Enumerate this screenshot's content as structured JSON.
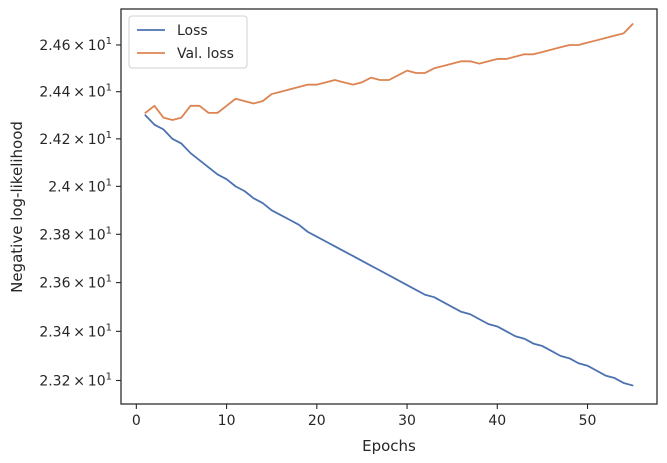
{
  "chart_data": {
    "type": "line",
    "xlabel": "Epochs",
    "ylabel": "Negative log-likelihood",
    "yscale": "log",
    "xlim": [
      -1.7,
      57.7
    ],
    "ylim": [
      23.105,
      24.755
    ],
    "grid": false,
    "legend_position": "top-left",
    "x_ticks": [
      {
        "value": 0,
        "label": "0"
      },
      {
        "value": 10,
        "label": "10"
      },
      {
        "value": 20,
        "label": "20"
      },
      {
        "value": 30,
        "label": "30"
      },
      {
        "value": 40,
        "label": "40"
      },
      {
        "value": 50,
        "label": "50"
      }
    ],
    "y_ticks": [
      {
        "value": 23.2,
        "mantissa": "2.32",
        "times": "×",
        "base": "10",
        "exp": "1"
      },
      {
        "value": 23.4,
        "mantissa": "2.34",
        "times": "×",
        "base": "10",
        "exp": "1"
      },
      {
        "value": 23.6,
        "mantissa": "2.36",
        "times": "×",
        "base": "10",
        "exp": "1"
      },
      {
        "value": 23.8,
        "mantissa": "2.38",
        "times": "×",
        "base": "10",
        "exp": "1"
      },
      {
        "value": 24.0,
        "mantissa": "2.4",
        "times": "×",
        "base": "10",
        "exp": "1"
      },
      {
        "value": 24.2,
        "mantissa": "2.42",
        "times": "×",
        "base": "10",
        "exp": "1"
      },
      {
        "value": 24.4,
        "mantissa": "2.44",
        "times": "×",
        "base": "10",
        "exp": "1"
      },
      {
        "value": 24.6,
        "mantissa": "2.46",
        "times": "×",
        "base": "10",
        "exp": "1"
      }
    ],
    "x": [
      1,
      2,
      3,
      4,
      5,
      6,
      7,
      8,
      9,
      10,
      11,
      12,
      13,
      14,
      15,
      16,
      17,
      18,
      19,
      20,
      21,
      22,
      23,
      24,
      25,
      26,
      27,
      28,
      29,
      30,
      31,
      32,
      33,
      34,
      35,
      36,
      37,
      38,
      39,
      40,
      41,
      42,
      43,
      44,
      45,
      46,
      47,
      48,
      49,
      50,
      51,
      52,
      53,
      54,
      55
    ],
    "series": [
      {
        "name": "Loss",
        "color": "#4c72b0",
        "values": [
          24.3,
          24.26,
          24.24,
          24.2,
          24.18,
          24.14,
          24.11,
          24.08,
          24.05,
          24.03,
          24.0,
          23.98,
          23.95,
          23.93,
          23.9,
          23.88,
          23.86,
          23.84,
          23.81,
          23.79,
          23.77,
          23.75,
          23.73,
          23.71,
          23.69,
          23.67,
          23.65,
          23.63,
          23.61,
          23.59,
          23.57,
          23.55,
          23.54,
          23.52,
          23.5,
          23.48,
          23.47,
          23.45,
          23.43,
          23.42,
          23.4,
          23.38,
          23.37,
          23.35,
          23.34,
          23.32,
          23.3,
          23.29,
          23.27,
          23.26,
          23.24,
          23.22,
          23.21,
          23.19,
          23.18
        ]
      },
      {
        "name": "Val. loss",
        "color": "#dd8452",
        "values": [
          24.31,
          24.34,
          24.29,
          24.28,
          24.29,
          24.34,
          24.34,
          24.31,
          24.31,
          24.34,
          24.37,
          24.36,
          24.35,
          24.36,
          24.39,
          24.4,
          24.41,
          24.42,
          24.43,
          24.43,
          24.44,
          24.45,
          24.44,
          24.43,
          24.44,
          24.46,
          24.45,
          24.45,
          24.47,
          24.49,
          24.48,
          24.48,
          24.5,
          24.51,
          24.52,
          24.53,
          24.53,
          24.52,
          24.53,
          24.54,
          24.54,
          24.55,
          24.56,
          24.56,
          24.57,
          24.58,
          24.59,
          24.6,
          24.6,
          24.61,
          24.62,
          24.63,
          24.64,
          24.65,
          24.69
        ]
      }
    ]
  }
}
